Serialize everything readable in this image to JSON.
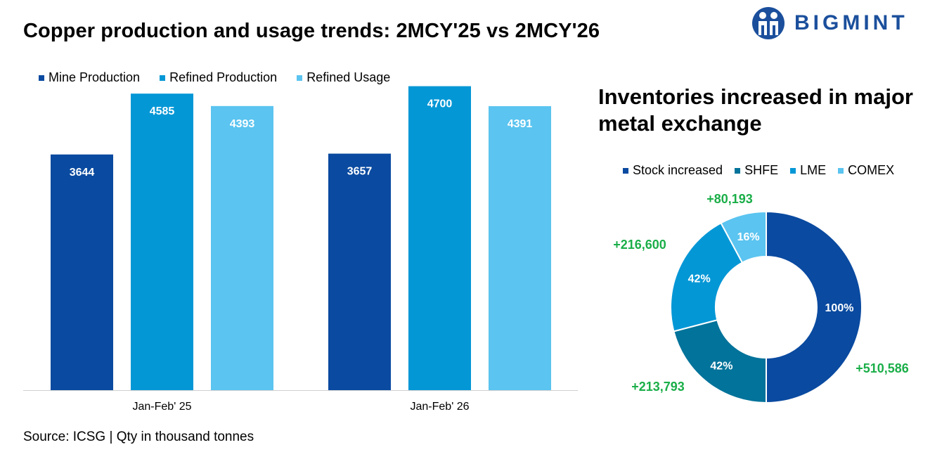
{
  "title": "Copper production and usage trends: 2MCY'25 vs  2MCY'26",
  "logo": {
    "text": "BIGMINT",
    "icon": "bigmint-people-logo-icon",
    "color": "#1b4f9c"
  },
  "source": "Source: ICSG | Qty in thousand tonnes",
  "colors": {
    "mine_production": "#0a4aa0",
    "refined_production": "#0497d6",
    "refined_usage": "#5bc4f0",
    "stock_increased": "#0a4aa0",
    "shfe": "#02739a",
    "lme": "#0497d6",
    "comex": "#5bc4f0",
    "increase_label": "#1aae48"
  },
  "chart_data": [
    {
      "type": "bar",
      "categories": [
        "Jan-Feb' 25",
        "Jan-Feb' 26"
      ],
      "series": [
        {
          "name": "Mine Production",
          "values": [
            3644,
            3657
          ]
        },
        {
          "name": "Refined Production",
          "values": [
            4585,
            4700
          ]
        },
        {
          "name": "Refined Usage",
          "values": [
            4393,
            4391
          ]
        }
      ],
      "ylim": [
        0,
        5000
      ],
      "legend": "top-left",
      "grid": false,
      "data_labels": true
    },
    {
      "type": "pie",
      "title": "Inventories increased in major metal exchange",
      "legend_entries": [
        "Stock increased",
        "SHFE",
        "LME",
        "COMEX"
      ],
      "legend": "top",
      "slices": [
        {
          "name": "Stock increased",
          "value": 510586,
          "label": "100%",
          "increase": "+510,586"
        },
        {
          "name": "SHFE",
          "value": 213793,
          "label": "42%",
          "increase": "+213,793"
        },
        {
          "name": "LME",
          "value": 216600,
          "label": "42%",
          "increase": "+216,600"
        },
        {
          "name": "COMEX",
          "value": 80193,
          "label": "16%",
          "increase": "+80,193"
        }
      ]
    }
  ]
}
